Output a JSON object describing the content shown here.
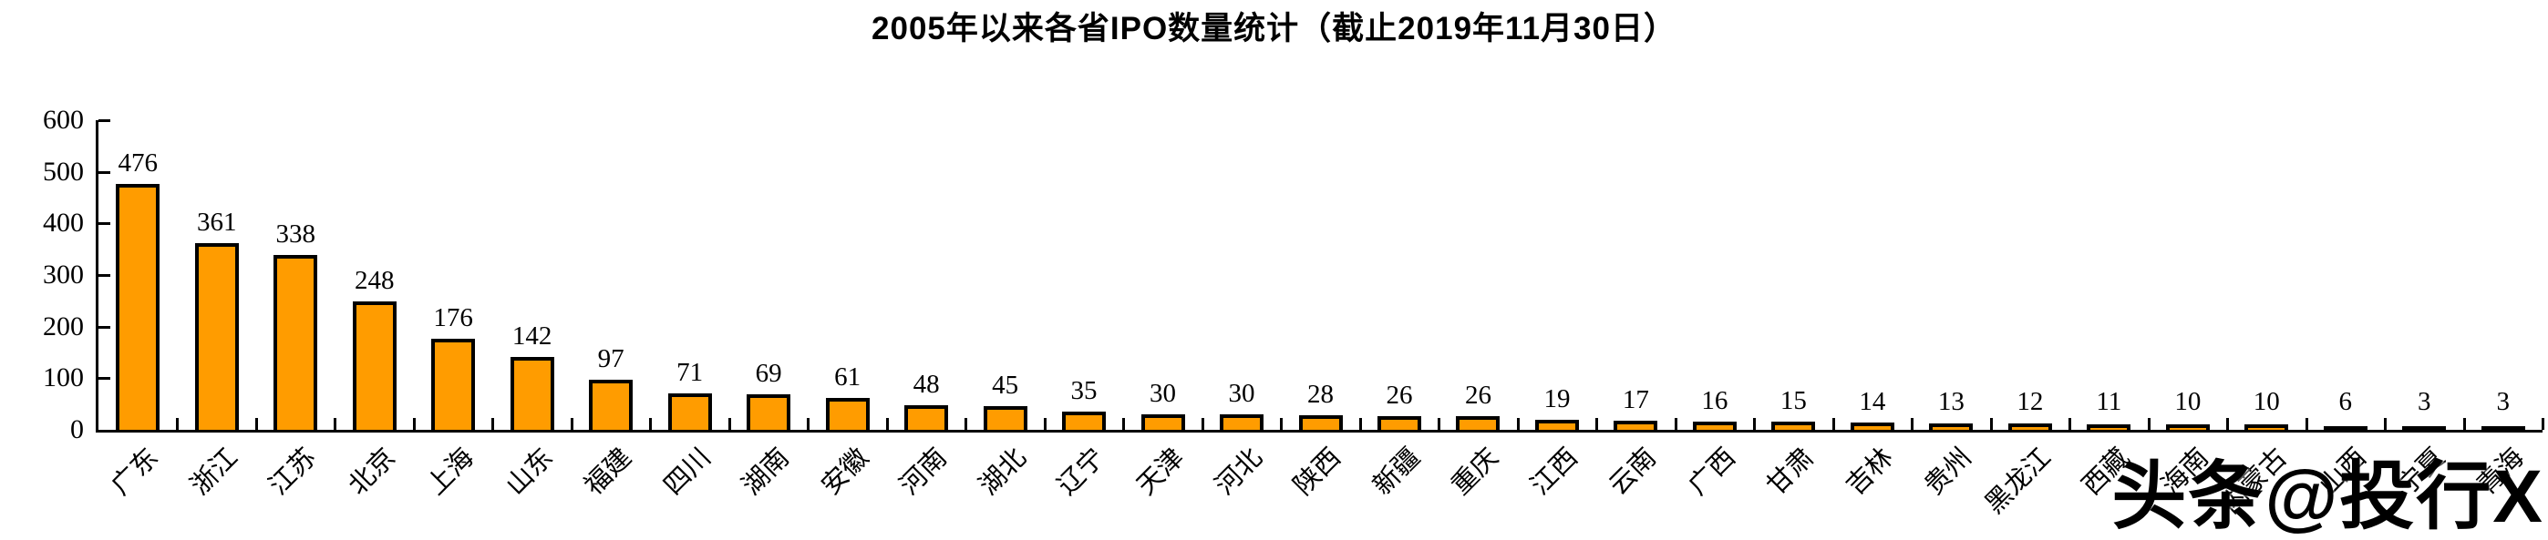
{
  "page": {
    "background": "#FFFFFF"
  },
  "header": {
    "title": "2005年以来各省IPO数量统计（截止2019年11月30日）"
  },
  "watermark": {
    "text": "头条@投行X"
  },
  "colors": {
    "bar_fill": "#FF9C00",
    "bar_border": "#000000",
    "axis": "#000000",
    "text": "#000000"
  },
  "chart_data": {
    "type": "bar",
    "title": "2005年以来各省IPO数量统计（截止2019年11月30日）",
    "categories": [
      "广东",
      "浙江",
      "江苏",
      "北京",
      "上海",
      "山东",
      "福建",
      "四川",
      "湖南",
      "安徽",
      "河南",
      "湖北",
      "辽宁",
      "天津",
      "河北",
      "陕西",
      "新疆",
      "重庆",
      "江西",
      "云南",
      "广西",
      "甘肃",
      "吉林",
      "贵州",
      "黑龙江",
      "西藏",
      "海南",
      "内蒙古",
      "山西",
      "宁夏",
      "青海"
    ],
    "values": [
      476,
      361,
      338,
      248,
      176,
      142,
      97,
      71,
      69,
      61,
      48,
      45,
      35,
      30,
      30,
      28,
      26,
      26,
      19,
      17,
      16,
      15,
      14,
      13,
      12,
      11,
      10,
      10,
      6,
      3,
      3
    ],
    "xlabel": "",
    "ylabel": "",
    "ylim": [
      0,
      600
    ],
    "yticks": [
      0,
      100,
      200,
      300,
      400,
      500,
      600
    ],
    "grid": false,
    "legend": false,
    "value_labels": true,
    "xtick_rotation_deg": 45
  }
}
